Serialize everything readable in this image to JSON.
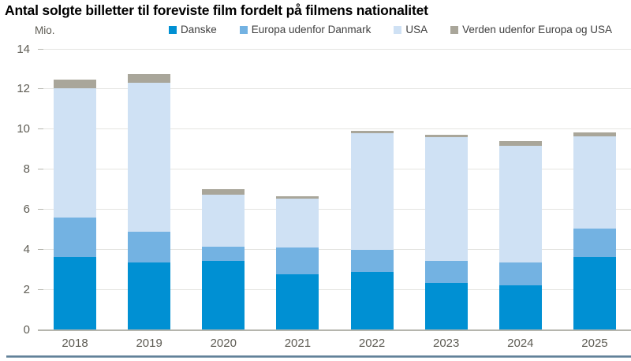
{
  "title": "Antal solgte billetter til foreviste film fordelt på filmens nationalitet",
  "y_axis": {
    "unit_label": "Mio.",
    "ticks": [
      "0",
      "2",
      "4",
      "6",
      "8",
      "10",
      "12",
      "14"
    ]
  },
  "chart_data": {
    "type": "bar",
    "stacked": true,
    "title": "Antal solgte billetter til foreviste film fordelt på filmens nationalitet",
    "ylabel": "Mio.",
    "xlabel": "",
    "ylim": [
      0,
      14
    ],
    "ytick_step": 2,
    "grid": true,
    "legend_position": "top",
    "categories": [
      "2018",
      "2019",
      "2020",
      "2021",
      "2022",
      "2023",
      "2024",
      "2025"
    ],
    "series": [
      {
        "name": "Danske",
        "color": "#0090d3",
        "values": [
          3.65,
          3.35,
          3.45,
          2.75,
          2.9,
          2.35,
          2.2,
          3.65
        ]
      },
      {
        "name": "Europa udenfor Danmark",
        "color": "#73b2e2",
        "values": [
          1.95,
          1.55,
          0.7,
          1.35,
          1.1,
          1.1,
          1.15,
          1.4
        ]
      },
      {
        "name": "USA",
        "color": "#cfe1f4",
        "values": [
          6.45,
          7.4,
          2.6,
          2.45,
          5.8,
          6.15,
          5.8,
          4.6
        ]
      },
      {
        "name": "Verden udenfor Europa og USA",
        "color": "#a9a69a",
        "values": [
          0.4,
          0.45,
          0.25,
          0.1,
          0.1,
          0.1,
          0.25,
          0.2
        ]
      }
    ],
    "totals": [
      12.45,
      12.75,
      7.0,
      6.65,
      9.9,
      9.7,
      9.4,
      9.85
    ]
  },
  "colors": {
    "gridline": "#e4e4e1",
    "axis_line": "#b5b5ad",
    "tick_text": "#5e5c54",
    "legend_text": "#3f3f3f",
    "footer_rule": "#5a7b93"
  }
}
